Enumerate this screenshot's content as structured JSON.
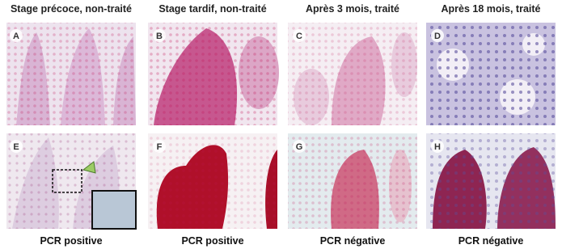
{
  "headers": [
    "Stage précoce, non-traité",
    "Stage tardif, non-traité",
    "Après 3 mois, traité",
    "Après 18 mois, traité"
  ],
  "panels": [
    {
      "label": "A"
    },
    {
      "label": "B"
    },
    {
      "label": "C"
    },
    {
      "label": "D"
    },
    {
      "label": "E"
    },
    {
      "label": "F"
    },
    {
      "label": "G"
    },
    {
      "label": "H"
    }
  ],
  "footers": [
    "PCR positive",
    "PCR positive",
    "PCR négative",
    "PCR négative"
  ]
}
